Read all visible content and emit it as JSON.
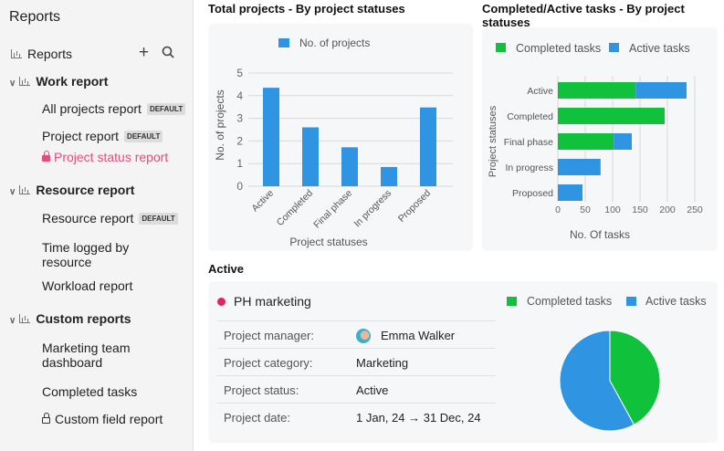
{
  "sidebar": {
    "title": "Reports",
    "reports_label": "Reports",
    "groups": [
      {
        "label": "Work report",
        "items": [
          {
            "label": "All projects report",
            "badge": "DEFAULT"
          },
          {
            "label": "Project report",
            "badge": "DEFAULT"
          },
          {
            "label": "Project status report",
            "locked": true,
            "active": true
          }
        ]
      },
      {
        "label": "Resource report",
        "items": [
          {
            "label": "Resource report",
            "badge": "DEFAULT"
          },
          {
            "label": "Time logged by resource"
          },
          {
            "label": "Workload report"
          }
        ]
      },
      {
        "label": "Custom reports",
        "items": [
          {
            "label": "Marketing team dashboard"
          },
          {
            "label": "Completed tasks"
          },
          {
            "label": "Custom field report",
            "locked": true
          }
        ]
      }
    ]
  },
  "colors": {
    "green": "#10c13c",
    "blue": "#2f95e3",
    "accent": "#e44d7b",
    "dot": "#e3245a"
  },
  "chart_data": [
    {
      "type": "bar",
      "title": "Total projects - By project statuses",
      "legend": [
        "No. of projects"
      ],
      "legend_position": "top",
      "categories": [
        "Active",
        "Completed",
        "Final phase",
        "In progress",
        "Proposed"
      ],
      "values": [
        4.35,
        2.6,
        1.72,
        0.85,
        3.48
      ],
      "xlabel": "Project statuses",
      "ylabel": "No. of projects",
      "ylim": [
        0,
        5
      ],
      "yticks": [
        0,
        1,
        2,
        3,
        4,
        5
      ],
      "grid": true
    },
    {
      "type": "bar",
      "orientation": "horizontal",
      "stacked": true,
      "title": "Completed/Active tasks - By project statuses",
      "legend_position": "top",
      "categories": [
        "Active",
        "Completed",
        "Final phase",
        "In progress",
        "Proposed"
      ],
      "series": [
        {
          "name": "Completed tasks",
          "values": [
            142,
            195,
            102,
            0,
            0
          ]
        },
        {
          "name": "Active tasks",
          "values": [
            93,
            0,
            33,
            78,
            45
          ]
        }
      ],
      "xlabel": "No. Of tasks",
      "ylabel": "Project statuses",
      "xlim": [
        0,
        250
      ],
      "xticks": [
        0,
        50,
        100,
        150,
        200,
        250
      ],
      "grid": true
    },
    {
      "type": "pie",
      "series": [
        {
          "name": "Completed tasks",
          "value": 42
        },
        {
          "name": "Active tasks",
          "value": 58
        }
      ],
      "legend_position": "top"
    }
  ],
  "active": {
    "heading": "Active",
    "project": "PH marketing",
    "rows": [
      {
        "label": "Project manager:",
        "value": "Emma Walker"
      },
      {
        "label": "Project category:",
        "value": "Marketing"
      },
      {
        "label": "Project status:",
        "value": "Active"
      },
      {
        "label": "Project date:",
        "value": "1 Jan, 24 → 31 Dec, 24"
      }
    ]
  }
}
